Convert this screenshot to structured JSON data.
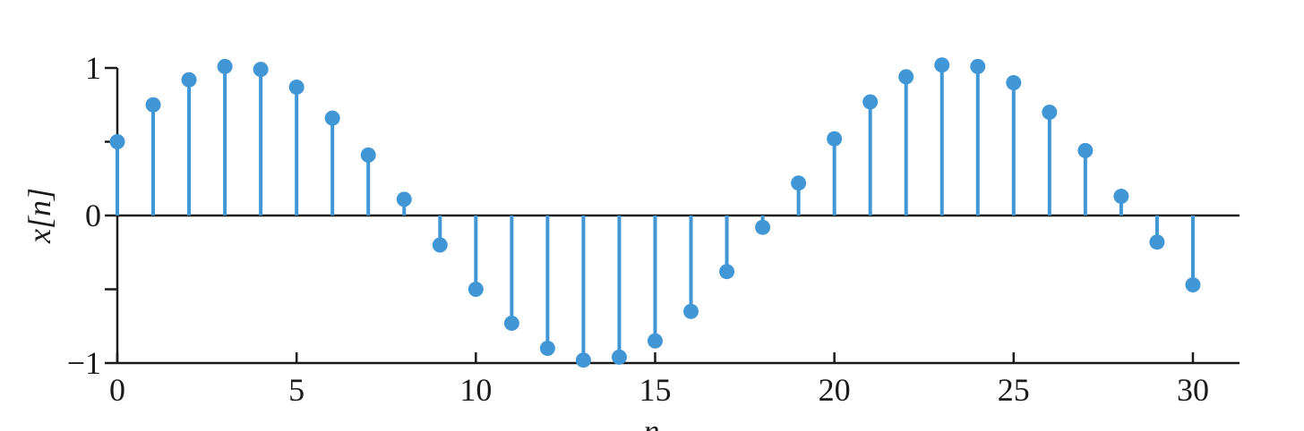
{
  "caption": "",
  "chart_data": {
    "type": "stem",
    "title": "",
    "xlabel": "n",
    "ylabel": "x[n]",
    "xlim": [
      0,
      31.3
    ],
    "ylim": [
      -1,
      1
    ],
    "xticks": [
      0,
      5,
      10,
      15,
      20,
      25,
      30
    ],
    "xtick_labels": [
      "0",
      "5",
      "10",
      "15",
      "20",
      "25",
      "30"
    ],
    "yticks": [
      -1,
      -0.5,
      0,
      0.5,
      1
    ],
    "ytick_labels": [
      "−1",
      "",
      "0",
      "",
      "1"
    ],
    "grid": false,
    "color": "#4197d6",
    "x": [
      0,
      1,
      2,
      3,
      4,
      5,
      6,
      7,
      8,
      9,
      10,
      11,
      12,
      13,
      14,
      15,
      16,
      17,
      18,
      19,
      20,
      21,
      22,
      23,
      24,
      25,
      26,
      27,
      28,
      29,
      30
    ],
    "y": [
      0.5,
      0.75,
      0.92,
      1.01,
      0.99,
      0.87,
      0.66,
      0.41,
      0.11,
      -0.2,
      -0.5,
      -0.73,
      -0.9,
      -0.98,
      -0.96,
      -0.85,
      -0.65,
      -0.38,
      -0.08,
      0.22,
      0.52,
      0.77,
      0.94,
      1.02,
      1.01,
      0.9,
      0.7,
      0.44,
      0.13,
      -0.18,
      -0.47
    ]
  }
}
